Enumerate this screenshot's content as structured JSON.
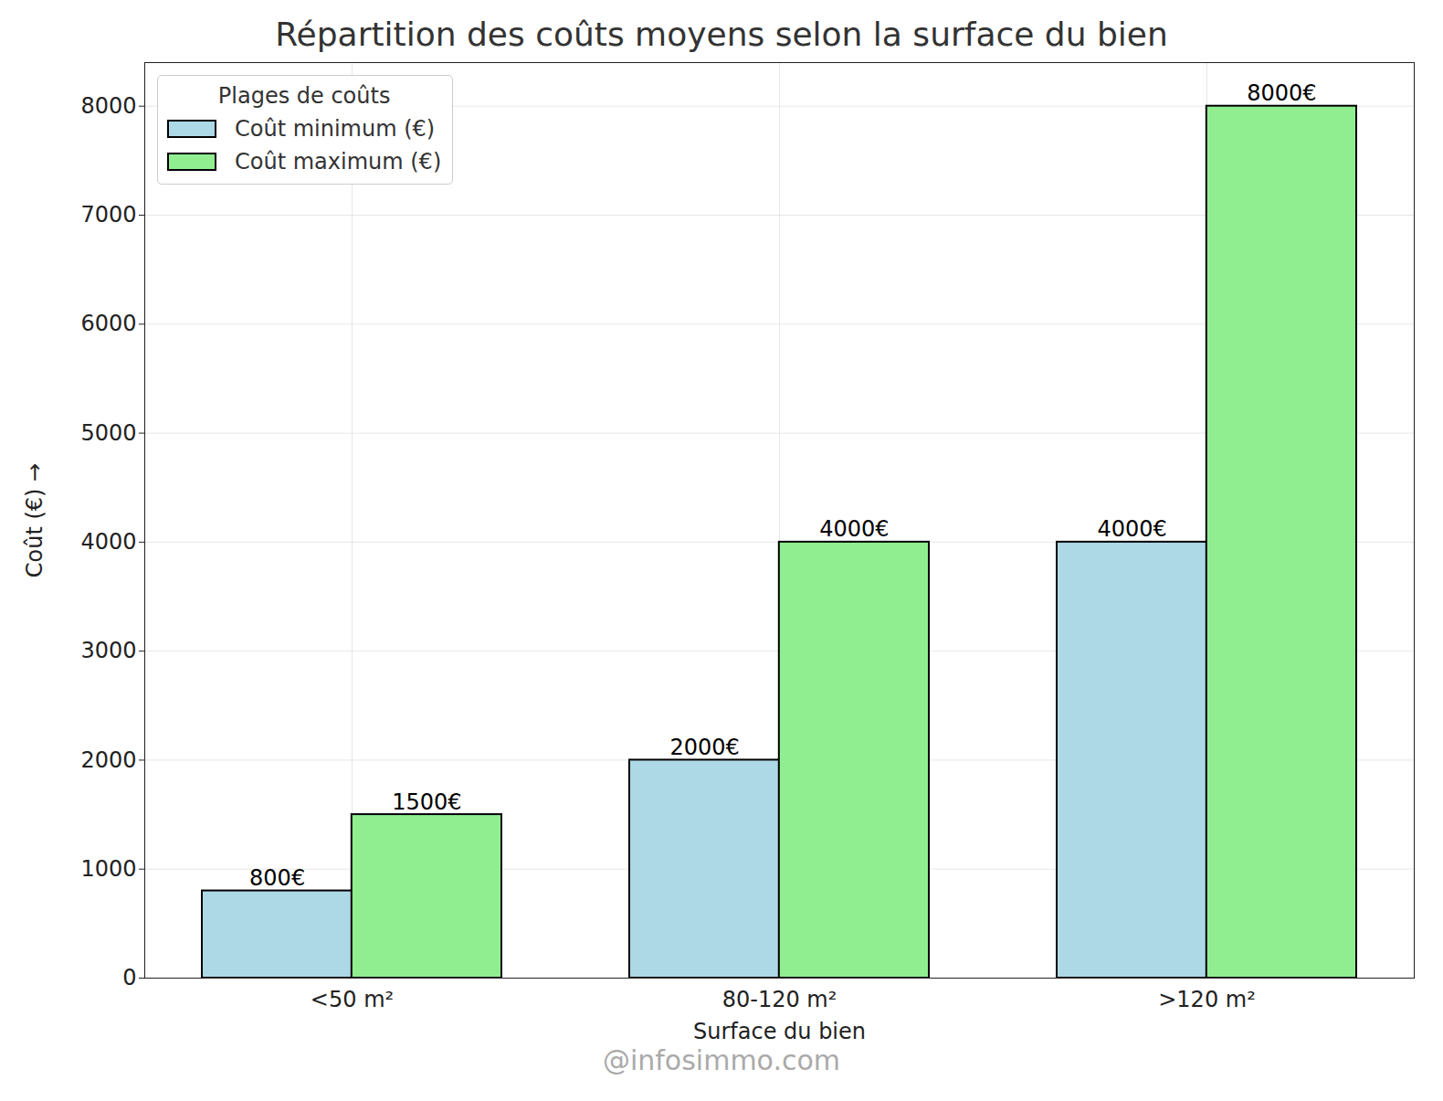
{
  "chart_data": {
    "type": "bar",
    "title": "Répartition des coûts moyens selon la surface du bien",
    "x_label": "Surface du bien",
    "y_label": "Coût (€)",
    "categories": [
      "<50 m²",
      "80-120 m²",
      ">120 m²"
    ],
    "series": [
      {
        "name": "Coût minimum (€)",
        "color": "#add8e6",
        "values": [
          800,
          2000,
          4000
        ],
        "value_labels": [
          "800€",
          "2000€",
          "4000€"
        ]
      },
      {
        "name": "Coût maximum (€)",
        "color": "#90ee90",
        "values": [
          1500,
          4000,
          8000
        ],
        "value_labels": [
          "1500€",
          "4000€",
          "8000€"
        ]
      }
    ],
    "ylim": [
      0,
      8400
    ],
    "yticks": [
      0,
      1000,
      2000,
      3000,
      4000,
      5000,
      6000,
      7000,
      8000
    ],
    "grid": true,
    "legend": "upper left",
    "legend_title": "Plages de coûts",
    "data_labels": true,
    "watermark": "@infosimmo.com"
  }
}
